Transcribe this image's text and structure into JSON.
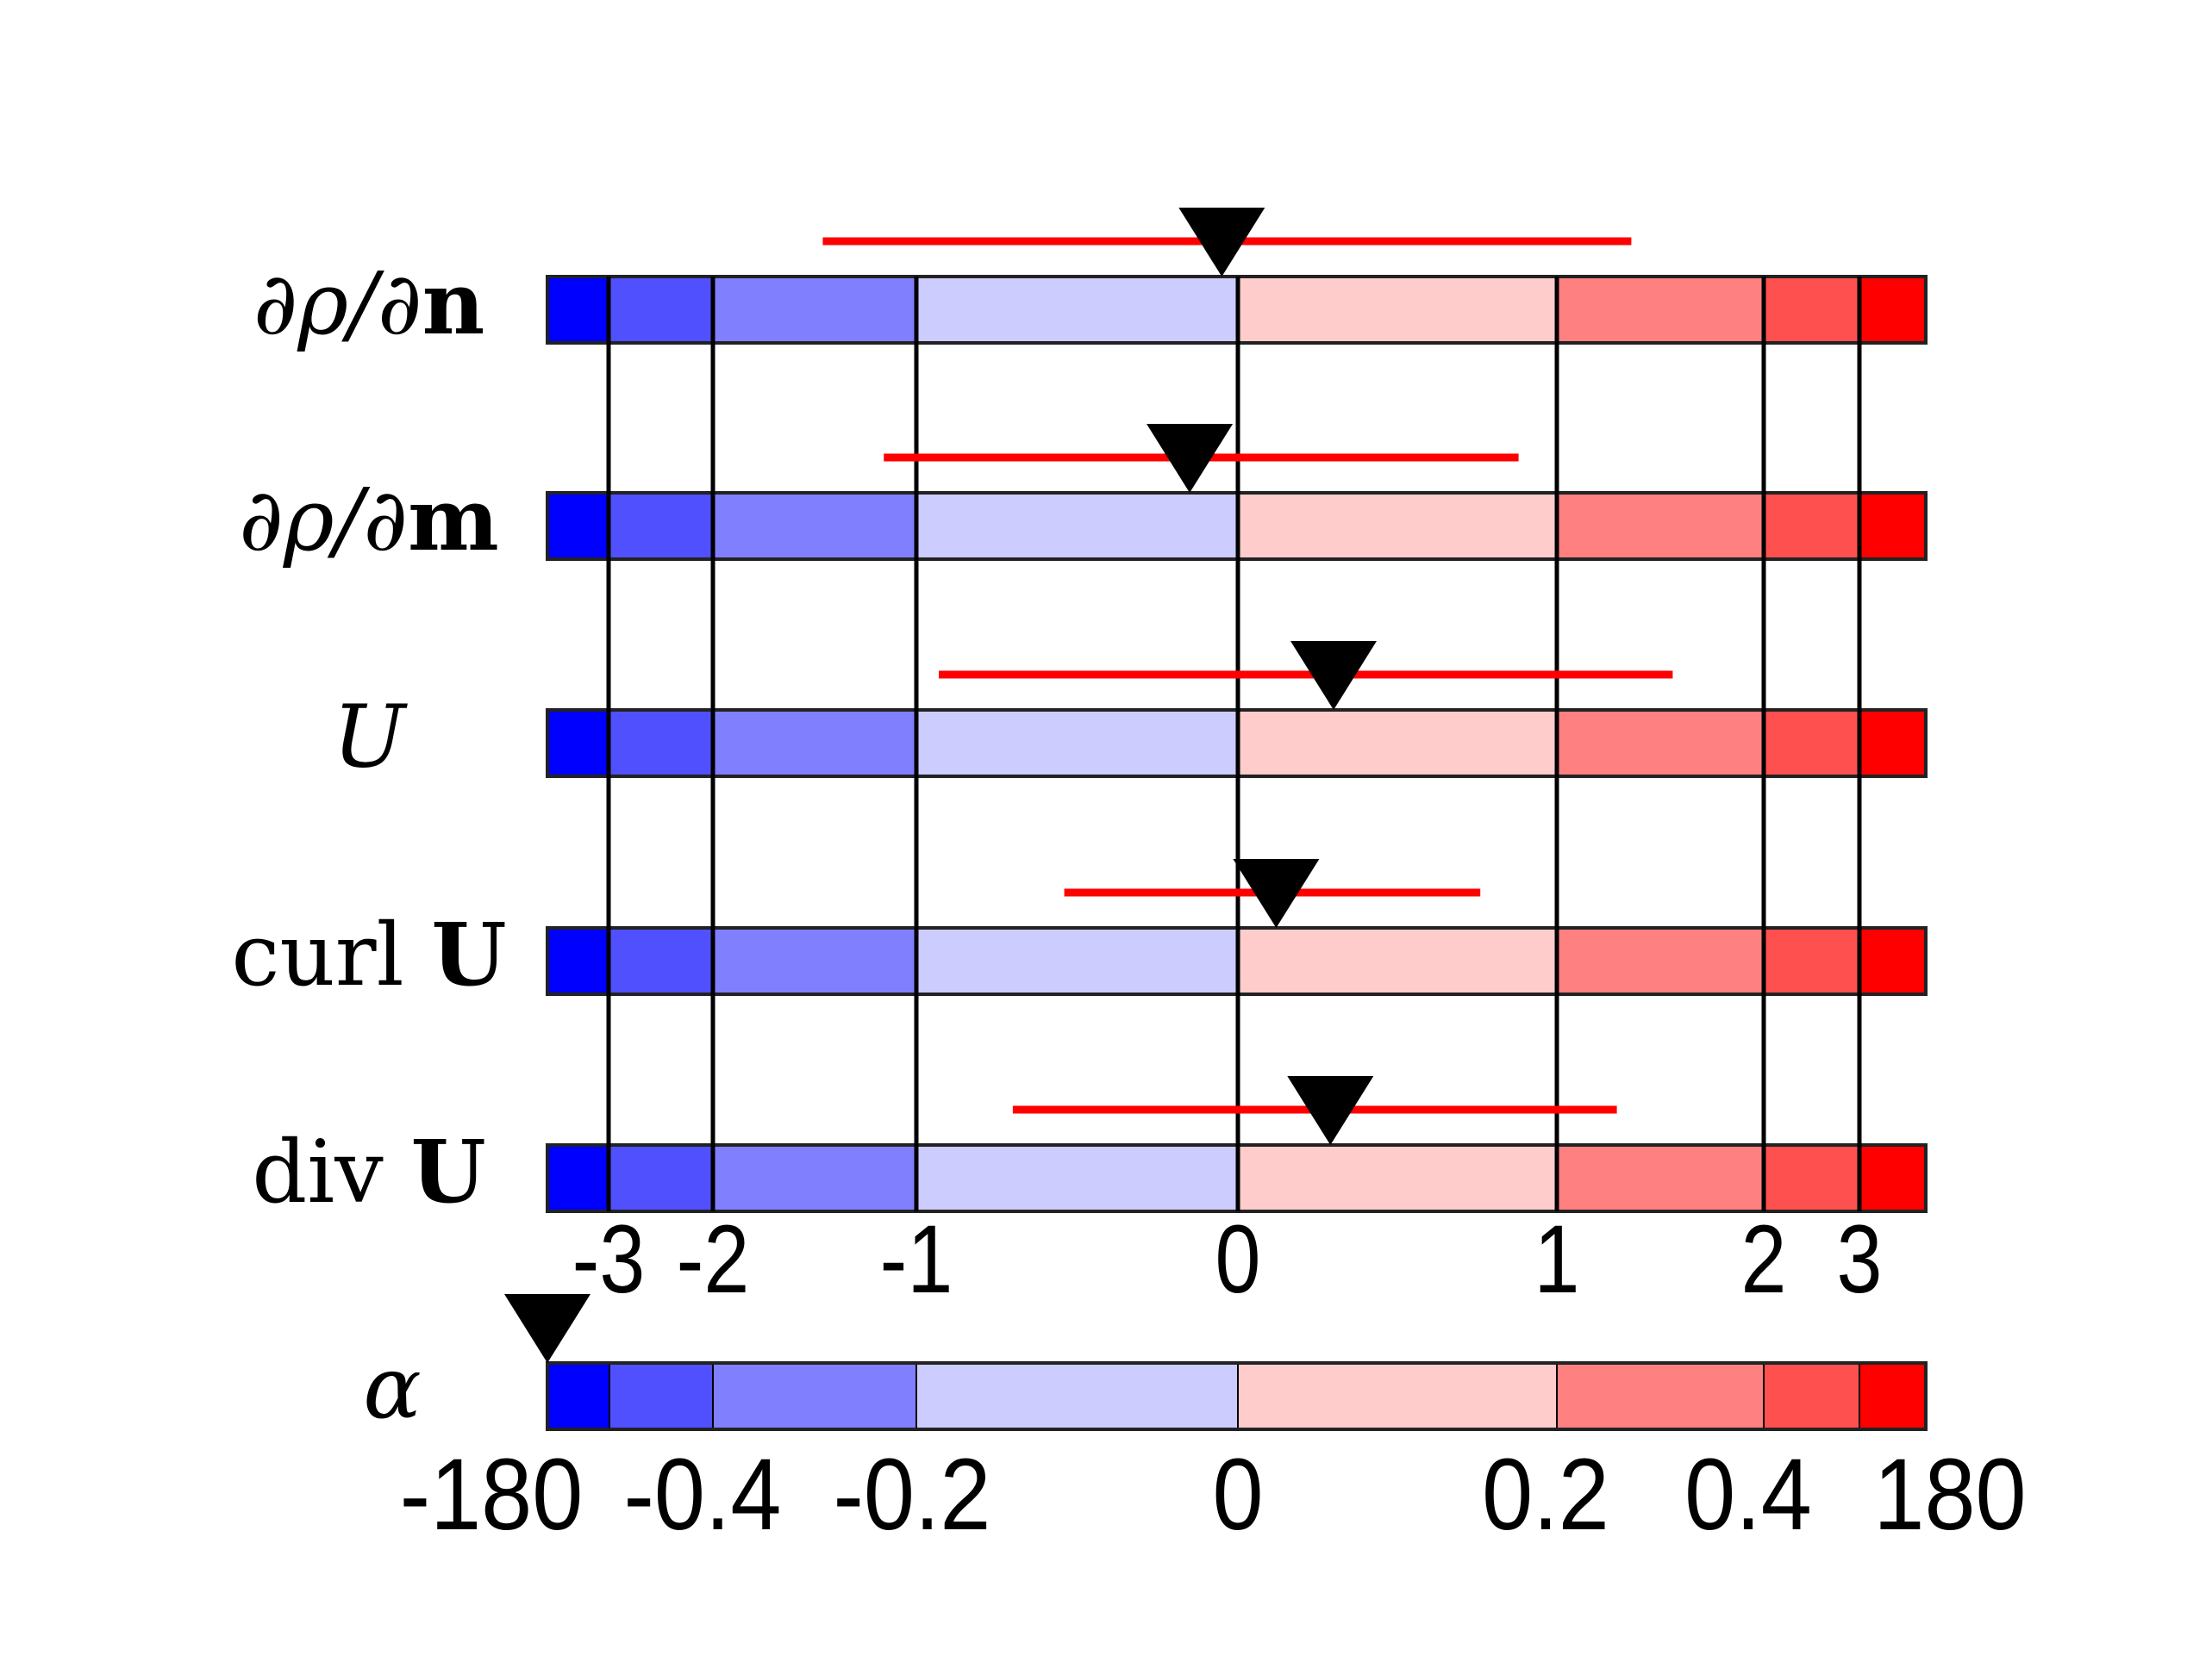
{
  "chart_data": {
    "type": "table",
    "title": "",
    "colors": [
      "#0000ff",
      "#5050ff",
      "#8080ff",
      "#ccccff",
      "#ffcccc",
      "#ff8080",
      "#ff5050",
      "#ff0000"
    ],
    "line_color": "#ff0000",
    "marker_color": "#000000",
    "sigma_ticks": [
      -3,
      -2,
      -1,
      0,
      1,
      2,
      3
    ],
    "sigma_tick_labels": [
      "-3",
      "-2",
      "-1",
      "0",
      "1",
      "2",
      "3"
    ],
    "rows": [
      {
        "label_parts": [
          {
            "t": "∂ρ/∂",
            "s": "it"
          },
          {
            "t": "n",
            "s": "bd"
          }
        ],
        "marker": -0.05,
        "range": [
          -1.46,
          1.36
        ]
      },
      {
        "label_parts": [
          {
            "t": "∂ρ/∂",
            "s": "it"
          },
          {
            "t": "m",
            "s": "bd"
          }
        ],
        "marker": -0.15,
        "range": [
          -1.16,
          0.88
        ]
      },
      {
        "label_parts": [
          {
            "t": "U",
            "s": "it"
          }
        ],
        "marker": 0.3,
        "range": [
          -0.93,
          1.56
        ]
      },
      {
        "label_parts": [
          {
            "t": "curl ",
            "s": ""
          },
          {
            "t": "U",
            "s": "bd"
          }
        ],
        "marker": 0.12,
        "range": [
          -0.54,
          0.76
        ]
      },
      {
        "label_parts": [
          {
            "t": "div ",
            "s": ""
          },
          {
            "t": "U",
            "s": "bd"
          }
        ],
        "marker": 0.29,
        "range": [
          -0.7,
          1.29
        ]
      }
    ],
    "alpha": {
      "label": "α",
      "tick_labels": [
        "-180",
        "-0.4",
        "-0.2",
        "0",
        "0.2",
        "0.4",
        "180"
      ],
      "marker": -180
    }
  }
}
